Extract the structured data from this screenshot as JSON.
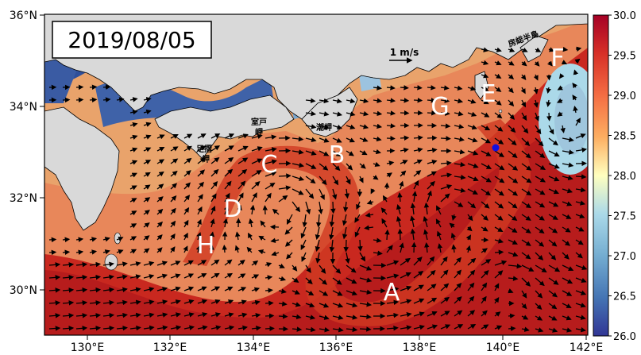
{
  "date_label": "2019/08/05",
  "scale": {
    "label": "1 m/s"
  },
  "axes": {
    "x_ticks": [
      "130°E",
      "132°E",
      "134°E",
      "136°E",
      "138°E",
      "140°E",
      "142°E"
    ],
    "y_ticks": [
      "36°N",
      "34°N",
      "32°N",
      "30°N"
    ]
  },
  "colorbar": {
    "ticks": [
      "30.0",
      "29.5",
      "29.0",
      "28.5",
      "28.0",
      "27.5",
      "27.0",
      "26.5",
      "26.0"
    ],
    "colors": {
      "max": "#a50026",
      "high": "#e34a33",
      "mid_high": "#fdae61",
      "mid": "#ffffbf",
      "mid_low": "#abd9e9",
      "low": "#4575b4",
      "min": "#313695"
    }
  },
  "region_labels": [
    "A",
    "B",
    "C",
    "D",
    "E",
    "F",
    "G",
    "H"
  ],
  "place_labels": {
    "muroto": "室戸岬",
    "ashizuri": "足摺岬",
    "shiono": "潮岬",
    "boso": "房総半島"
  },
  "colors": {
    "land": "#d9d9d9",
    "marker": "#1010e0"
  }
}
